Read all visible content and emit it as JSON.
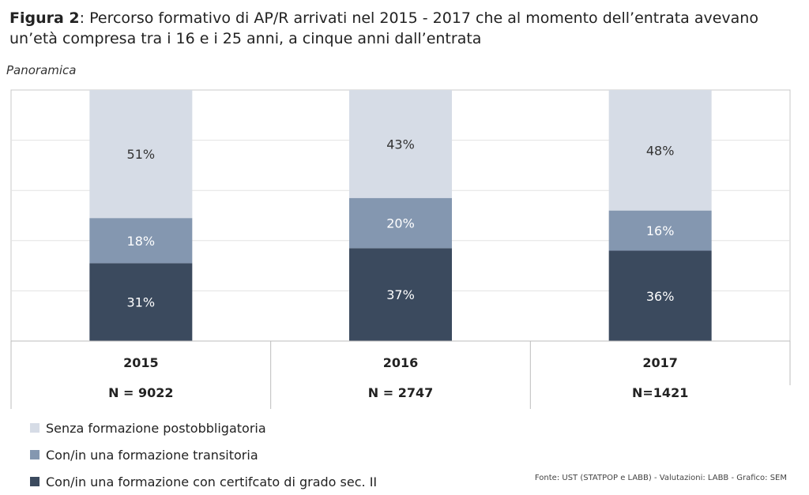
{
  "title": {
    "prefix": "Figura 2",
    "text": ": Percorso formativo di AP/R arrivati nel 2015 - 2017 che al momento dell’entrata avevano un’età compresa tra i 16 e i 25 anni, a cinque anni dall’entrata"
  },
  "subtitle": "Panoramica",
  "source": "Fonte: UST (STATPOP e LABB) - Valutazioni: LABB - Grafico: SEM",
  "colors": {
    "senza": "#d6dce6",
    "transitoria": "#8497b0",
    "certificato": "#3b4a5e"
  },
  "chart_data": {
    "type": "bar",
    "stacked": true,
    "categories": [
      "2015",
      "2016",
      "2017"
    ],
    "n_labels": [
      "N = 9022",
      "N = 2747",
      "N=1421"
    ],
    "ylim": [
      0,
      100
    ],
    "grid": true,
    "legend_position": "bottom-left",
    "series": [
      {
        "name": "Con/in una formazione con certifcato di grado sec. II",
        "key": "certificato",
        "values": [
          31,
          37,
          36
        ],
        "labels": [
          "31%",
          "37%",
          "36%"
        ]
      },
      {
        "name": "Con/in una formazione transitoria",
        "key": "transitoria",
        "values": [
          18,
          20,
          16
        ],
        "labels": [
          "18%",
          "20%",
          "16%"
        ]
      },
      {
        "name": "Senza formazione postobbligatoria",
        "key": "senza",
        "values": [
          51,
          43,
          48
        ],
        "labels": [
          "51%",
          "43%",
          "48%"
        ]
      }
    ],
    "legend": [
      {
        "label": "Senza formazione postobbligatoria",
        "key": "senza"
      },
      {
        "label": "Con/in una formazione transitoria",
        "key": "transitoria"
      },
      {
        "label": "Con/in una formazione con certifcato di grado sec. II",
        "key": "certificato"
      }
    ]
  }
}
